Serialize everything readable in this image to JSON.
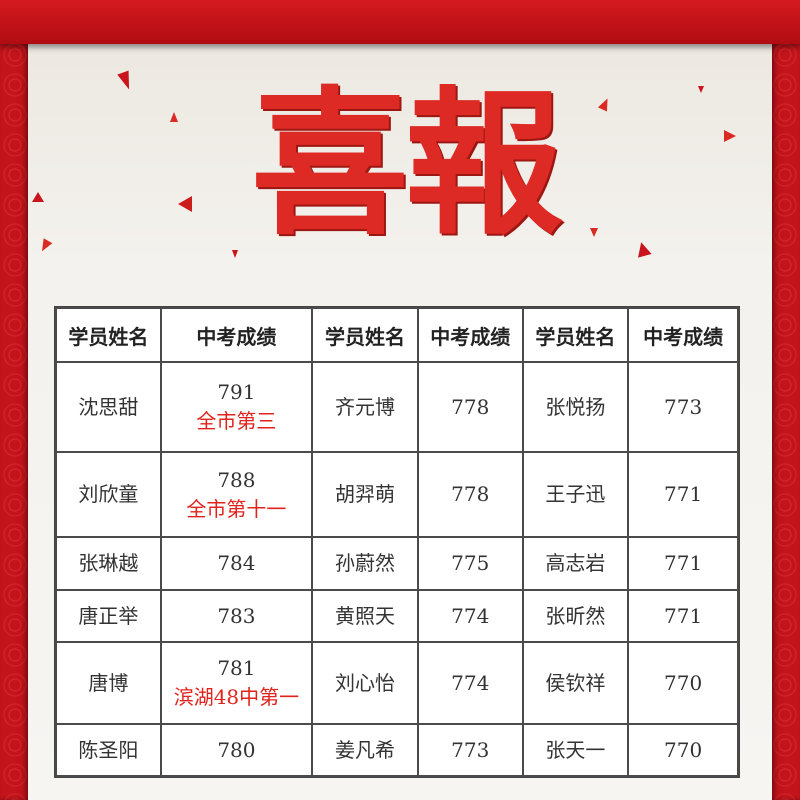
{
  "title": "喜報",
  "colors": {
    "frame_red": "#c8141c",
    "title_red": "#de2a24",
    "note_red": "#e0231c"
  },
  "table": {
    "headers": [
      "学员姓名",
      "中考成绩",
      "学员姓名",
      "中考成绩",
      "学员姓名",
      "中考成绩"
    ],
    "rows": [
      {
        "name1": "沈思甜",
        "score1": "791",
        "note1": "全市第三",
        "name2": "齐元博",
        "score2": "778",
        "name3": "张悦扬",
        "score3": "773"
      },
      {
        "name1": "刘欣童",
        "score1": "788",
        "note1": "全市第十一",
        "name2": "胡羿萌",
        "score2": "778",
        "name3": "王子迅",
        "score3": "771"
      },
      {
        "name1": "张琳越",
        "score1": "784",
        "note1": "",
        "name2": "孙蔚然",
        "score2": "775",
        "name3": "高志岩",
        "score3": "771"
      },
      {
        "name1": "唐正举",
        "score1": "783",
        "note1": "",
        "name2": "黄照天",
        "score2": "774",
        "name3": "张昕然",
        "score3": "771"
      },
      {
        "name1": "唐博",
        "score1": "781",
        "note1": "滨湖48中第一",
        "name2": "刘心怡",
        "score2": "774",
        "name3": "侯钦祥",
        "score3": "770"
      },
      {
        "name1": "陈圣阳",
        "score1": "780",
        "note1": "",
        "name2": "姜凡希",
        "score2": "773",
        "name3": "张天一",
        "score3": "770"
      }
    ]
  }
}
